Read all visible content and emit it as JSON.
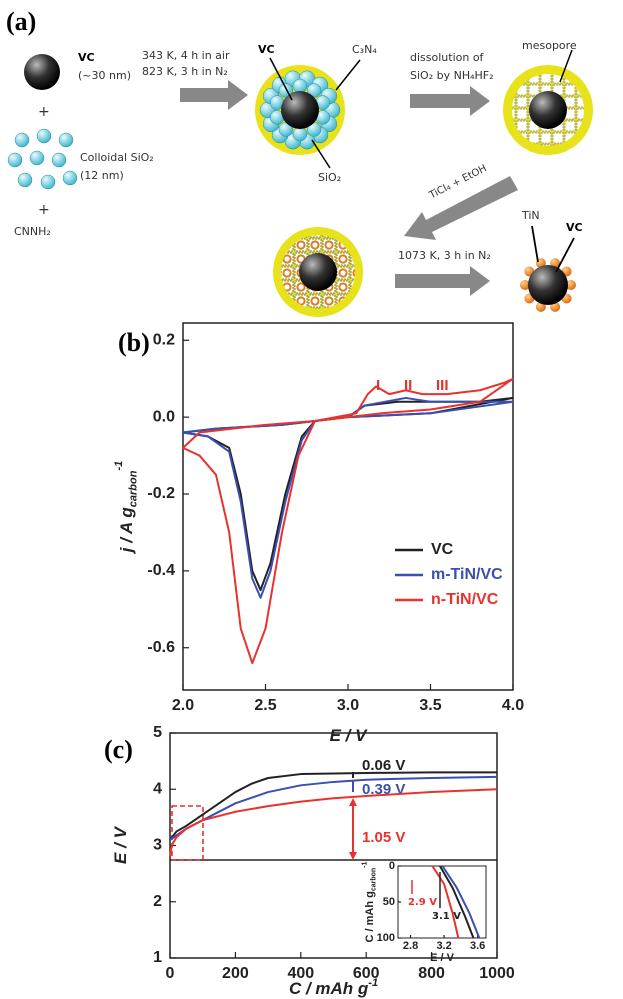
{
  "diagram": {
    "panel": "(a)",
    "vc_label": "VC",
    "vc_size": "(~30 nm)",
    "plus_1": "+",
    "silica_label": "Colloidal SiO₂",
    "silica_size": "(12 nm)",
    "plus_2": "+",
    "precursor": "CNNH₂",
    "step_1_line_1": "343 K, 4 h in air",
    "step_1_line_2": "823 K, 3 h in N₂",
    "composite_vc": "VC",
    "composite_c3n4": "C₃N₄",
    "composite_sio2": "SiO₂",
    "step_2_line_1": "dissolution of",
    "step_2_line_2": "SiO₂ by NH₄HF₂",
    "mesopore": "mesopore",
    "step_3": "TiCl₄ + EtOH",
    "step_4": "1073 K, 3 h in N₂",
    "product_tin": "TiN",
    "product_vc": "VC"
  },
  "chart_data": [
    {
      "type": "line",
      "panel": "(b)",
      "x_label": "E / V",
      "y_label": "j / A g",
      "y_label_sub": "carbon",
      "y_label_sup": "-1",
      "xlim": [
        2.0,
        4.0
      ],
      "ylim": [
        -0.71,
        0.245
      ],
      "xticks": [
        {
          "value": 2.0,
          "label": "2.0"
        },
        2.5,
        {
          "value": 3.0,
          "label": "3.0"
        },
        3.5,
        {
          "value": 4.0,
          "label": "4.0"
        }
      ],
      "yticks": [
        0.2,
        {
          "value": 0,
          "label": "0.0"
        },
        -0.2,
        -0.4,
        -0.6
      ],
      "annotations": [
        "I",
        "II",
        "III"
      ],
      "series": [
        {
          "name": "VC",
          "color": "#222222",
          "x": [
            4.0,
            3.5,
            3.0,
            2.8,
            2.72,
            2.62,
            2.53,
            2.47,
            2.42,
            2.35,
            2.28,
            2.15,
            2.0,
            2.2,
            2.6,
            3.0,
            3.1,
            3.3,
            3.5,
            3.8,
            4.0
          ],
          "values": [
            0.05,
            0.01,
            0.0,
            -0.01,
            -0.05,
            -0.2,
            -0.38,
            -0.45,
            -0.4,
            -0.2,
            -0.08,
            -0.05,
            -0.04,
            -0.03,
            -0.02,
            0.0,
            0.03,
            0.04,
            0.04,
            0.04,
            0.05
          ]
        },
        {
          "name": "m-TiN/VC",
          "color": "#3a4fb0",
          "x": [
            4.0,
            3.5,
            3.0,
            2.8,
            2.72,
            2.62,
            2.53,
            2.47,
            2.42,
            2.35,
            2.28,
            2.15,
            2.0,
            2.2,
            2.6,
            3.0,
            3.1,
            3.35,
            3.5,
            3.8,
            4.0
          ],
          "values": [
            0.04,
            0.01,
            0.0,
            -0.01,
            -0.06,
            -0.22,
            -0.4,
            -0.47,
            -0.42,
            -0.22,
            -0.09,
            -0.05,
            -0.04,
            -0.03,
            -0.02,
            0.0,
            0.03,
            0.05,
            0.04,
            0.04,
            0.04
          ]
        },
        {
          "name": "n-TiN/VC",
          "color": "#e8322e",
          "x": [
            4.0,
            3.8,
            3.5,
            3.2,
            3.0,
            2.8,
            2.7,
            2.6,
            2.5,
            2.42,
            2.35,
            2.28,
            2.2,
            2.1,
            2.0,
            2.1,
            2.3,
            2.5,
            2.8,
            3.05,
            3.12,
            3.17,
            3.25,
            3.35,
            3.45,
            3.6,
            3.8,
            3.95,
            4.0
          ],
          "values": [
            0.1,
            0.04,
            0.02,
            0.01,
            0.0,
            -0.01,
            -0.1,
            -0.3,
            -0.55,
            -0.64,
            -0.55,
            -0.3,
            -0.15,
            -0.1,
            -0.08,
            -0.04,
            -0.03,
            -0.02,
            -0.01,
            0.01,
            0.06,
            0.08,
            0.06,
            0.07,
            0.06,
            0.06,
            0.07,
            0.09,
            0.1
          ]
        }
      ]
    },
    {
      "type": "line",
      "panel": "(c)",
      "x_label": "C / mAh g",
      "x_label_sup": "-1",
      "y_label": "E / V",
      "xlim": [
        0,
        1000
      ],
      "ylim": [
        1,
        5
      ],
      "xticks": [
        0,
        200,
        400,
        600,
        800,
        1000
      ],
      "yticks": [
        1,
        2,
        3,
        4,
        5
      ],
      "annotations": [
        "0.06 V",
        "0.39 V",
        "1.05 V"
      ],
      "series": [
        {
          "color": "#222222",
          "x": [
            0,
            20,
            50,
            100,
            150,
            200,
            250,
            300,
            400,
            500,
            600,
            800,
            1000
          ],
          "values": [
            3.1,
            3.25,
            3.35,
            3.55,
            3.75,
            3.95,
            4.1,
            4.2,
            4.27,
            4.28,
            4.29,
            4.3,
            4.3
          ]
        },
        {
          "color": "#3a4fb0",
          "x": [
            0,
            50,
            100,
            200,
            300,
            400,
            500,
            600,
            800,
            1000
          ],
          "values": [
            3.1,
            3.3,
            3.45,
            3.75,
            3.95,
            4.07,
            4.13,
            4.17,
            4.2,
            4.22
          ]
        },
        {
          "color": "#e8322e",
          "x": [
            0,
            5,
            20,
            50,
            100,
            200,
            300,
            400,
            500,
            600,
            800,
            1000
          ],
          "values": [
            2.8,
            3.0,
            3.15,
            3.3,
            3.45,
            3.6,
            3.7,
            3.78,
            3.84,
            3.88,
            3.95,
            4.0
          ]
        }
      ]
    },
    {
      "type": "line",
      "x_label": "E / V",
      "y_label": "C / mAh g",
      "y_label_sub": "carbon",
      "y_label_sup": "-1",
      "xlim": [
        2.65,
        3.7
      ],
      "ylim": [
        100,
        0
      ],
      "xticks": [
        2.8,
        3.2,
        3.6
      ],
      "yticks": [
        0,
        50,
        100
      ],
      "annotations": [
        "2.9 V",
        "3.1 V"
      ],
      "series": [
        {
          "color": "#222222",
          "x": [
            3.15,
            3.3,
            3.45,
            3.55
          ],
          "values": [
            0,
            30,
            70,
            100
          ]
        },
        {
          "color": "#3a4fb0",
          "x": [
            3.18,
            3.35,
            3.5,
            3.62
          ],
          "values": [
            0,
            30,
            65,
            100
          ]
        },
        {
          "color": "#e8322e",
          "x": [
            3.06,
            3.2,
            3.3,
            3.37
          ],
          "values": [
            0,
            25,
            65,
            100
          ]
        }
      ]
    }
  ]
}
